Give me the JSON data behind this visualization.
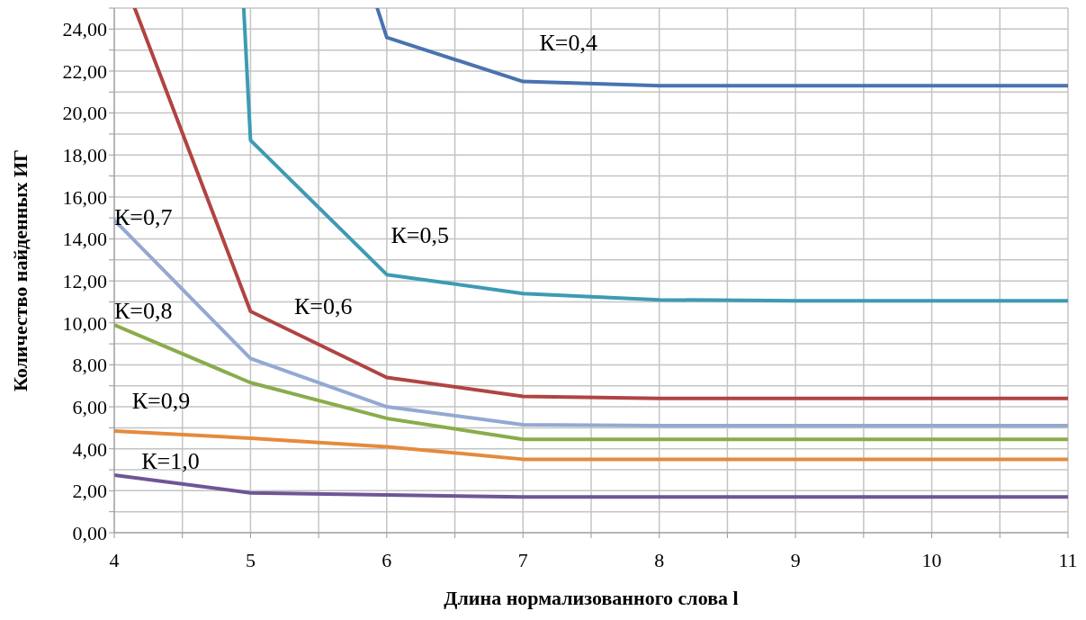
{
  "chart_data": {
    "type": "line",
    "xlabel": "Длина нормализованного слова l",
    "ylabel": "Количество  найденных ИГ",
    "xlim": [
      4,
      11
    ],
    "xticks": [
      4,
      {
        "value": 4.5,
        "label": null
      },
      5,
      {
        "value": 5.5,
        "label": null
      },
      6,
      {
        "value": 6.5,
        "label": null
      },
      7,
      {
        "value": 7.5,
        "label": null
      },
      8,
      {
        "value": 8.5,
        "label": null
      },
      9,
      {
        "value": 9.5,
        "label": null
      },
      10,
      {
        "value": 10.5,
        "label": null
      },
      11
    ],
    "ylim": [
      0,
      25
    ],
    "yticks": [
      {
        "value": 0,
        "label": "0,00"
      },
      {
        "value": 1,
        "label": null
      },
      {
        "value": 2,
        "label": "2,00"
      },
      {
        "value": 3,
        "label": null
      },
      {
        "value": 4,
        "label": "4,00"
      },
      {
        "value": 5,
        "label": null
      },
      {
        "value": 6,
        "label": "6,00"
      },
      {
        "value": 7,
        "label": null
      },
      {
        "value": 8,
        "label": "8,00"
      },
      {
        "value": 9,
        "label": null
      },
      {
        "value": 10,
        "label": "10,00"
      },
      {
        "value": 11,
        "label": null
      },
      {
        "value": 12,
        "label": "12,00"
      },
      {
        "value": 13,
        "label": null
      },
      {
        "value": 14,
        "label": "14,00"
      },
      {
        "value": 15,
        "label": null
      },
      {
        "value": 16,
        "label": "16,00"
      },
      {
        "value": 17,
        "label": null
      },
      {
        "value": 18,
        "label": "18,00"
      },
      {
        "value": 19,
        "label": null
      },
      {
        "value": 20,
        "label": "20,00"
      },
      {
        "value": 21,
        "label": null
      },
      {
        "value": 22,
        "label": "22,00"
      },
      {
        "value": 23,
        "label": null
      },
      {
        "value": 24,
        "label": "24,00"
      },
      {
        "value": 25,
        "label": null
      }
    ],
    "grid": true,
    "legend": false,
    "marker": "none",
    "line_style": "solid",
    "series": [
      {
        "name": "К=0,4",
        "color": "#4a72b0",
        "x": [
          5.93,
          6,
          7,
          8,
          9,
          10,
          11
        ],
        "values": [
          25,
          23.6,
          21.5,
          21.3,
          21.3,
          21.3,
          21.3
        ]
      },
      {
        "name": "К=0,5",
        "color": "#3d9bb3",
        "x": [
          4.95,
          5,
          6,
          7,
          8,
          9,
          10,
          11
        ],
        "values": [
          25,
          18.7,
          12.3,
          11.4,
          11.1,
          11.05,
          11.05,
          11.05
        ]
      },
      {
        "name": "К=0,6",
        "color": "#b04442",
        "x": [
          4.15,
          5,
          6,
          7,
          8,
          9,
          10,
          11
        ],
        "values": [
          25,
          10.55,
          7.4,
          6.5,
          6.4,
          6.4,
          6.4,
          6.4
        ]
      },
      {
        "name": "К=0,7",
        "color": "#93a9d3",
        "x": [
          4,
          5,
          6,
          7,
          8,
          9,
          10,
          11
        ],
        "values": [
          14.9,
          8.3,
          6.0,
          5.15,
          5.1,
          5.1,
          5.1,
          5.1
        ]
      },
      {
        "name": "К=0,8",
        "color": "#8aac4a",
        "x": [
          4,
          5,
          6,
          7,
          8,
          9,
          10,
          11
        ],
        "values": [
          9.9,
          7.15,
          5.45,
          4.45,
          4.45,
          4.45,
          4.45,
          4.45
        ]
      },
      {
        "name": "К=0,9",
        "color": "#e58a3c",
        "x": [
          4,
          5,
          6,
          7,
          8,
          9,
          10,
          11
        ],
        "values": [
          4.85,
          4.5,
          4.1,
          3.5,
          3.5,
          3.5,
          3.5,
          3.5
        ]
      },
      {
        "name": "К=1,0",
        "color": "#6f5597",
        "x": [
          4,
          5,
          6,
          7,
          8,
          9,
          10,
          11
        ],
        "values": [
          2.75,
          1.9,
          1.8,
          1.7,
          1.7,
          1.7,
          1.7,
          1.7
        ]
      }
    ]
  }
}
